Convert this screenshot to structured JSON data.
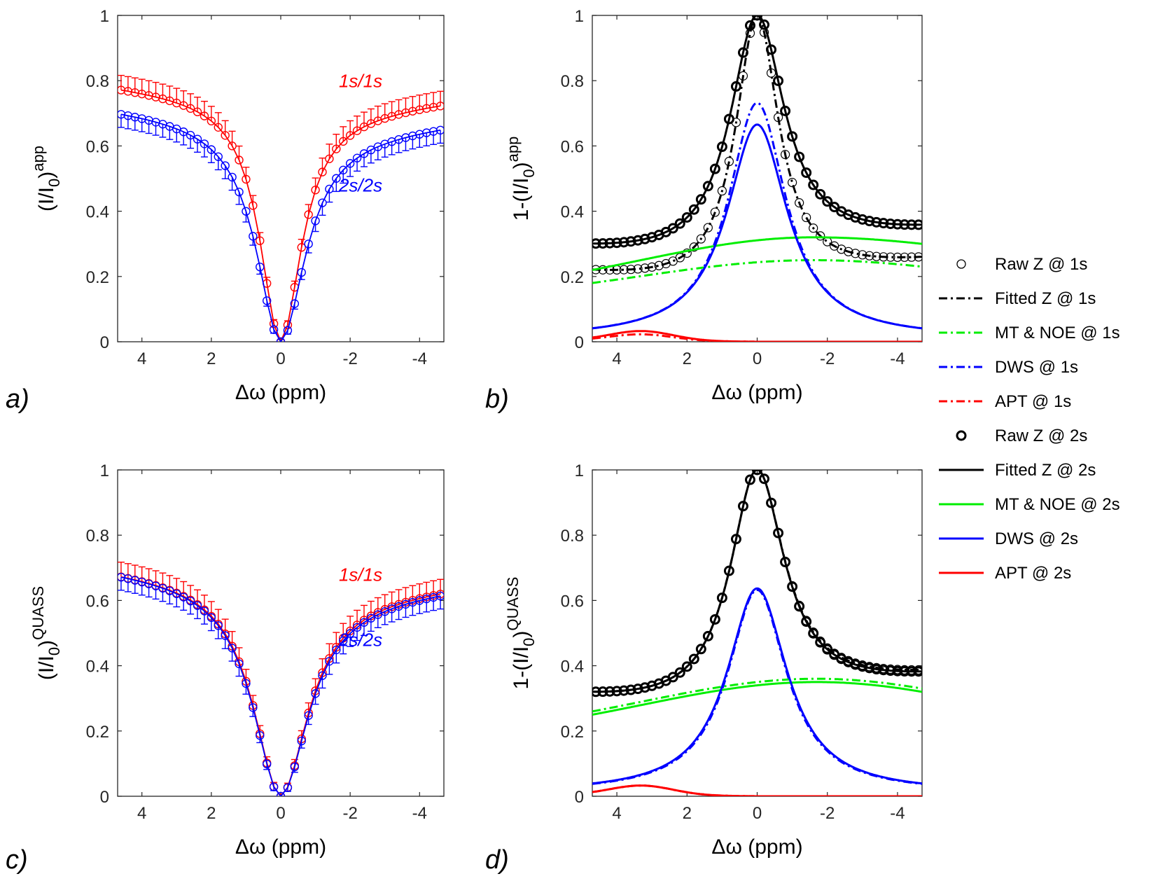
{
  "chart_data": [
    {
      "id": "a",
      "type": "line",
      "panel_label": "a)",
      "xlabel": "Δω (ppm)",
      "ylabel_base": "(I/I",
      "ylabel_sub": "0",
      "ylabel_close": ")",
      "ylabel_sup": "app",
      "xlim": [
        4.7,
        -4.7
      ],
      "ylim": [
        0,
        1
      ],
      "xticks": [
        4,
        2,
        0,
        -2,
        -4
      ],
      "xtick_labels": [
        "4",
        "2",
        "0",
        "-2",
        "-4"
      ],
      "yticks": [
        0,
        0.2,
        0.4,
        0.6,
        0.8,
        1
      ],
      "ytick_labels": [
        "0",
        "0.2",
        "0.4",
        "0.6",
        "0.8",
        "1"
      ],
      "annotations": [
        {
          "text": "1s/1s",
          "color": "#ff0000",
          "x": -2.3,
          "y": 0.78
        },
        {
          "text": "2s/2s",
          "color": "#0000ff",
          "x": -2.3,
          "y": 0.46
        }
      ],
      "series": [
        {
          "name": "1s/1s",
          "color": "#ff0000",
          "width_param": 0.72,
          "max": 0.79,
          "min_neg": 0.74,
          "err": 0.045
        },
        {
          "name": "2s/2s",
          "color": "#0000ff",
          "width_param": 0.85,
          "max": 0.72,
          "min_neg": 0.67,
          "err": 0.04
        }
      ]
    },
    {
      "id": "b",
      "type": "line",
      "panel_label": "b)",
      "xlabel": "Δω (ppm)",
      "ylabel_base": "1-(I/I",
      "ylabel_sub": "0",
      "ylabel_close": ")",
      "ylabel_sup": "app",
      "xlim": [
        4.7,
        -4.7
      ],
      "ylim": [
        0,
        1
      ],
      "xticks": [
        4,
        2,
        0,
        -2,
        -4
      ],
      "xtick_labels": [
        "4",
        "2",
        "0",
        "-2",
        "-4"
      ],
      "yticks": [
        0,
        0.2,
        0.4,
        0.6,
        0.8,
        1
      ],
      "ytick_labels": [
        "0",
        "0.2",
        "0.4",
        "0.6",
        "0.8",
        "1"
      ],
      "series": [
        {
          "name": "Raw Z @ 1s",
          "kind": "raw",
          "color": "#000000",
          "peak": 1.0,
          "width": 0.75,
          "base_pos": 0.2,
          "base_neg": 0.24,
          "bold": false
        },
        {
          "name": "Fitted Z @ 1s",
          "kind": "fit",
          "color": "#000000",
          "peak": 1.0,
          "width": 0.75,
          "base_pos": 0.2,
          "base_neg": 0.24,
          "dash": true
        },
        {
          "name": "MT & NOE @ 1s",
          "kind": "mt",
          "color": "#00ee00",
          "start": 0.18,
          "peak": 0.25,
          "center": -1.6,
          "end": 0.23,
          "dash": true
        },
        {
          "name": "DWS @ 1s",
          "kind": "dws",
          "color": "#0000ff",
          "peak": 0.76,
          "width": 1.0,
          "dash": true
        },
        {
          "name": "APT @ 1s",
          "kind": "apt",
          "color": "#ff0000",
          "peak": 0.02,
          "dash": true
        },
        {
          "name": "Raw Z @ 2s",
          "kind": "raw",
          "color": "#000000",
          "peak": 1.0,
          "width": 0.95,
          "base_pos": 0.27,
          "base_neg": 0.33,
          "bold": true
        },
        {
          "name": "Fitted Z @ 2s",
          "kind": "fit",
          "color": "#000000",
          "peak": 1.0,
          "width": 0.95,
          "base_pos": 0.27,
          "base_neg": 0.33,
          "dash": false
        },
        {
          "name": "MT & NOE @ 2s",
          "kind": "mt",
          "color": "#00ee00",
          "start": 0.22,
          "peak": 0.32,
          "center": -1.6,
          "end": 0.3,
          "dash": false
        },
        {
          "name": "DWS @ 2s",
          "kind": "dws",
          "color": "#0000ff",
          "peak": 0.69,
          "width": 1.05,
          "dash": false
        },
        {
          "name": "APT @ 2s",
          "kind": "apt",
          "color": "#ff0000",
          "peak": 0.03,
          "dash": false
        }
      ]
    },
    {
      "id": "c",
      "type": "line",
      "panel_label": "c)",
      "xlabel": "Δω (ppm)",
      "ylabel_base": "(I/I",
      "ylabel_sub": "0",
      "ylabel_close": ")",
      "ylabel_sup": "QUASS",
      "xlim": [
        4.7,
        -4.7
      ],
      "ylim": [
        0,
        1
      ],
      "xticks": [
        4,
        2,
        0,
        -2,
        -4
      ],
      "xtick_labels": [
        "4",
        "2",
        "0",
        "-2",
        "-4"
      ],
      "yticks": [
        0,
        0.2,
        0.4,
        0.6,
        0.8,
        1
      ],
      "ytick_labels": [
        "0",
        "0.2",
        "0.4",
        "0.6",
        "0.8",
        "1"
      ],
      "annotations": [
        {
          "text": "1s/1s",
          "color": "#ff0000",
          "x": -2.3,
          "y": 0.66
        },
        {
          "text": "2s/2s",
          "color": "#0000ff",
          "x": -2.3,
          "y": 0.46
        }
      ],
      "series": [
        {
          "name": "1s/1s",
          "color": "#ff0000",
          "width_param": 0.95,
          "max": 0.7,
          "min_neg": 0.645,
          "err": 0.045
        },
        {
          "name": "2s/2s",
          "color": "#0000ff",
          "width_param": 0.97,
          "max": 0.7,
          "min_neg": 0.64,
          "err": 0.04
        }
      ]
    },
    {
      "id": "d",
      "type": "line",
      "panel_label": "d)",
      "xlabel": "Δω (ppm)",
      "ylabel_base": "1-(I/I",
      "ylabel_sub": "0",
      "ylabel_close": ")",
      "ylabel_sup": "QUASS",
      "xlim": [
        4.7,
        -4.7
      ],
      "ylim": [
        0,
        1
      ],
      "xticks": [
        4,
        2,
        0,
        -2,
        -4
      ],
      "xtick_labels": [
        "4",
        "2",
        "0",
        "-2",
        "-4"
      ],
      "yticks": [
        0,
        0.2,
        0.4,
        0.6,
        0.8,
        1
      ],
      "ytick_labels": [
        "0",
        "0.2",
        "0.4",
        "0.6",
        "0.8",
        "1"
      ],
      "series": [
        {
          "name": "Raw Z @ 1s",
          "kind": "raw",
          "color": "#000000",
          "peak": 1.0,
          "width": 0.95,
          "base_pos": 0.29,
          "base_neg": 0.36,
          "bold": false
        },
        {
          "name": "Fitted Z @ 1s",
          "kind": "fit",
          "color": "#000000",
          "peak": 1.0,
          "width": 0.95,
          "base_pos": 0.29,
          "base_neg": 0.36,
          "dash": true
        },
        {
          "name": "MT & NOE @ 1s",
          "kind": "mt",
          "color": "#00ee00",
          "start": 0.26,
          "peak": 0.36,
          "center": -1.7,
          "end": 0.33,
          "dash": true
        },
        {
          "name": "DWS @ 1s",
          "kind": "dws",
          "color": "#0000ff",
          "peak": 0.655,
          "width": 1.02,
          "dash": true
        },
        {
          "name": "APT @ 1s",
          "kind": "apt",
          "color": "#ff0000",
          "peak": 0.03,
          "dash": true
        },
        {
          "name": "Raw Z @ 2s",
          "kind": "raw",
          "color": "#000000",
          "peak": 1.0,
          "width": 0.95,
          "base_pos": 0.29,
          "base_neg": 0.355,
          "bold": true
        },
        {
          "name": "Fitted Z @ 2s",
          "kind": "fit",
          "color": "#000000",
          "peak": 1.0,
          "width": 0.95,
          "base_pos": 0.29,
          "base_neg": 0.355,
          "dash": false
        },
        {
          "name": "MT & NOE @ 2s",
          "kind": "mt",
          "color": "#00ee00",
          "start": 0.25,
          "peak": 0.35,
          "center": -1.7,
          "end": 0.32,
          "dash": false
        },
        {
          "name": "DWS @ 2s",
          "kind": "dws",
          "color": "#0000ff",
          "peak": 0.66,
          "width": 1.04,
          "dash": false
        },
        {
          "name": "APT @ 2s",
          "kind": "apt",
          "color": "#ff0000",
          "peak": 0.03,
          "dash": false
        }
      ]
    }
  ],
  "legend": {
    "placement": "right",
    "entries": [
      {
        "label": "Raw Z @ 1s",
        "style": "marker",
        "color": "#000000",
        "bold": false
      },
      {
        "label": "Fitted Z @ 1s",
        "style": "dashdot",
        "color": "#000000"
      },
      {
        "label": "MT & NOE @ 1s",
        "style": "dashdot",
        "color": "#00ee00"
      },
      {
        "label": "DWS @ 1s",
        "style": "dashdot",
        "color": "#0000ff"
      },
      {
        "label": "APT @ 1s",
        "style": "dashdot",
        "color": "#ff0000"
      },
      {
        "label": "Raw Z @ 2s",
        "style": "marker",
        "color": "#000000",
        "bold": true
      },
      {
        "label": "Fitted Z @ 2s",
        "style": "solid",
        "color": "#000000"
      },
      {
        "label": "MT & NOE @ 2s",
        "style": "solid",
        "color": "#00ee00"
      },
      {
        "label": "DWS @ 2s",
        "style": "solid",
        "color": "#0000ff"
      },
      {
        "label": "APT @ 2s",
        "style": "solid",
        "color": "#ff0000"
      }
    ]
  }
}
